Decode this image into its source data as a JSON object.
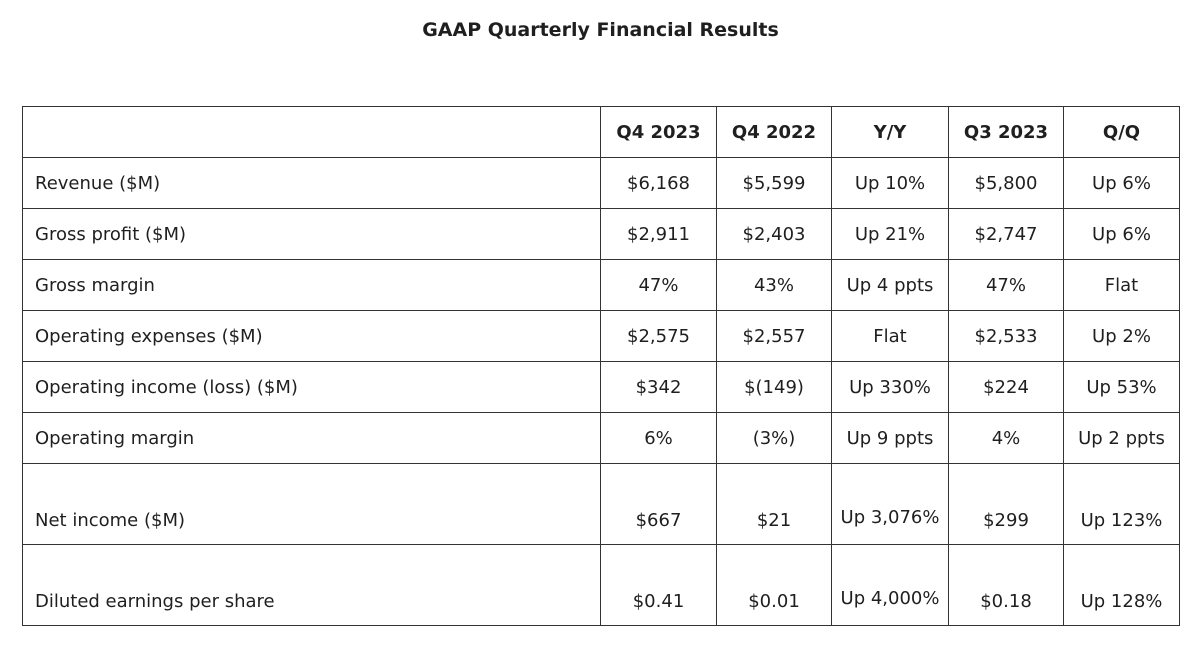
{
  "title": "GAAP Quarterly Financial Results",
  "table": {
    "headers": [
      "",
      "Q4 2023",
      "Q4 2022",
      "Y/Y",
      "Q3 2023",
      "Q/Q"
    ],
    "rows": [
      {
        "label": "Revenue ($M)",
        "q4_2023": "$6,168",
        "q4_2022": "$5,599",
        "yy": "Up 10%",
        "q3_2023": "$5,800",
        "qq": "Up 6%"
      },
      {
        "label": "Gross profit ($M)",
        "q4_2023": "$2,911",
        "q4_2022": "$2,403",
        "yy": "Up 21%",
        "q3_2023": "$2,747",
        "qq": "Up 6%"
      },
      {
        "label": "Gross margin",
        "q4_2023": "47%",
        "q4_2022": "43%",
        "yy": "Up 4 ppts",
        "q3_2023": "47%",
        "qq": "Flat"
      },
      {
        "label": "Operating expenses ($M)",
        "q4_2023": "$2,575",
        "q4_2022": "$2,557",
        "yy": "Flat",
        "q3_2023": "$2,533",
        "qq": "Up 2%"
      },
      {
        "label": "Operating income (loss) ($M)",
        "q4_2023": "$342",
        "q4_2022": "$(149)",
        "yy": "Up 330%",
        "q3_2023": "$224",
        "qq": "Up 53%"
      },
      {
        "label": "Operating margin",
        "q4_2023": "6%",
        "q4_2022": "(3%)",
        "yy": "Up 9 ppts",
        "q3_2023": "4%",
        "qq": "Up 2 ppts"
      },
      {
        "label": "Net income ($M)",
        "q4_2023": "$667",
        "q4_2022": "$21",
        "yy": "Up 3,076%",
        "q3_2023": "$299",
        "qq": "Up 123%"
      },
      {
        "label": "Diluted earnings per share",
        "q4_2023": "$0.41",
        "q4_2022": "$0.01",
        "yy": "Up 4,000%",
        "q3_2023": "$0.18",
        "qq": "Up 128%"
      }
    ]
  }
}
